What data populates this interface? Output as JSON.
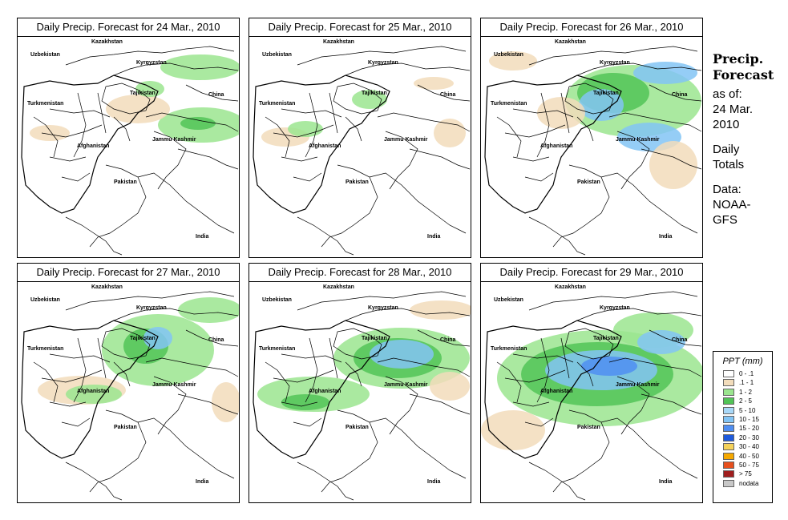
{
  "panels": [
    {
      "title": "Daily Precip. Forecast for  24 Mar., 2010",
      "rain": [
        {
          "cx": 228,
          "cy": 38,
          "rx": 50,
          "ry": 16,
          "c": "#9be58f"
        },
        {
          "cx": 230,
          "cy": 110,
          "rx": 55,
          "ry": 22,
          "c": "#9be58f"
        },
        {
          "cx": 225,
          "cy": 108,
          "rx": 22,
          "ry": 8,
          "c": "#52c457"
        },
        {
          "cx": 150,
          "cy": 90,
          "rx": 40,
          "ry": 18,
          "c": "#f2dcbb"
        },
        {
          "cx": 165,
          "cy": 65,
          "rx": 18,
          "ry": 10,
          "c": "#9be58f"
        },
        {
          "cx": 40,
          "cy": 120,
          "rx": 25,
          "ry": 10,
          "c": "#f2dcbb"
        }
      ]
    },
    {
      "title": "Daily Precip. Forecast for  25 Mar., 2010",
      "rain": [
        {
          "cx": 45,
          "cy": 125,
          "rx": 30,
          "ry": 12,
          "c": "#f2dcbb"
        },
        {
          "cx": 70,
          "cy": 115,
          "rx": 22,
          "ry": 10,
          "c": "#9be58f"
        },
        {
          "cx": 150,
          "cy": 78,
          "rx": 22,
          "ry": 12,
          "c": "#9be58f"
        },
        {
          "cx": 230,
          "cy": 58,
          "rx": 25,
          "ry": 8,
          "c": "#f2dcbb"
        },
        {
          "cx": 250,
          "cy": 120,
          "rx": 20,
          "ry": 18,
          "c": "#f2dcbb"
        }
      ]
    },
    {
      "title": "Daily Precip. Forecast for  26 Mar., 2010",
      "rain": [
        {
          "cx": 190,
          "cy": 80,
          "rx": 85,
          "ry": 45,
          "c": "#9be58f"
        },
        {
          "cx": 165,
          "cy": 70,
          "rx": 45,
          "ry": 25,
          "c": "#52c457"
        },
        {
          "cx": 210,
          "cy": 125,
          "rx": 40,
          "ry": 18,
          "c": "#82c4f5"
        },
        {
          "cx": 150,
          "cy": 85,
          "rx": 28,
          "ry": 20,
          "c": "#82c4f5"
        },
        {
          "cx": 230,
          "cy": 45,
          "rx": 40,
          "ry": 14,
          "c": "#82c4f5"
        },
        {
          "cx": 240,
          "cy": 160,
          "rx": 30,
          "ry": 30,
          "c": "#f2dcbb"
        },
        {
          "cx": 100,
          "cy": 95,
          "rx": 30,
          "ry": 20,
          "c": "#f2dcbb"
        },
        {
          "cx": 40,
          "cy": 30,
          "rx": 30,
          "ry": 12,
          "c": "#f2dcbb"
        }
      ]
    },
    {
      "title": "Daily Precip. Forecast for  27 Mar., 2010",
      "rain": [
        {
          "cx": 175,
          "cy": 85,
          "rx": 70,
          "ry": 45,
          "c": "#9be58f"
        },
        {
          "cx": 160,
          "cy": 80,
          "rx": 28,
          "ry": 22,
          "c": "#52c457"
        },
        {
          "cx": 175,
          "cy": 70,
          "rx": 18,
          "ry": 14,
          "c": "#82c4f5"
        },
        {
          "cx": 240,
          "cy": 35,
          "rx": 40,
          "ry": 16,
          "c": "#9be58f"
        },
        {
          "cx": 80,
          "cy": 135,
          "rx": 55,
          "ry": 18,
          "c": "#f2dcbb"
        },
        {
          "cx": 95,
          "cy": 140,
          "rx": 35,
          "ry": 12,
          "c": "#9be58f"
        },
        {
          "cx": 260,
          "cy": 150,
          "rx": 18,
          "ry": 25,
          "c": "#f2dcbb"
        }
      ]
    },
    {
      "title": "Daily Precip. Forecast for  28 Mar., 2010",
      "rain": [
        {
          "cx": 190,
          "cy": 95,
          "rx": 85,
          "ry": 38,
          "c": "#9be58f"
        },
        {
          "cx": 185,
          "cy": 95,
          "rx": 55,
          "ry": 25,
          "c": "#52c457"
        },
        {
          "cx": 190,
          "cy": 90,
          "rx": 40,
          "ry": 18,
          "c": "#82c4f5"
        },
        {
          "cx": 80,
          "cy": 140,
          "rx": 70,
          "ry": 22,
          "c": "#9be58f"
        },
        {
          "cx": 70,
          "cy": 150,
          "rx": 30,
          "ry": 10,
          "c": "#52c457"
        },
        {
          "cx": 240,
          "cy": 35,
          "rx": 40,
          "ry": 12,
          "c": "#f2dcbb"
        },
        {
          "cx": 250,
          "cy": 130,
          "rx": 25,
          "ry": 18,
          "c": "#f2dcbb"
        }
      ]
    },
    {
      "title": "Daily Precip. Forecast for  29 Mar., 2010",
      "rain": [
        {
          "cx": 150,
          "cy": 120,
          "rx": 130,
          "ry": 60,
          "c": "#9be58f"
        },
        {
          "cx": 145,
          "cy": 115,
          "rx": 95,
          "ry": 40,
          "c": "#52c457"
        },
        {
          "cx": 150,
          "cy": 110,
          "rx": 70,
          "ry": 25,
          "c": "#82c4f5"
        },
        {
          "cx": 160,
          "cy": 105,
          "rx": 35,
          "ry": 12,
          "c": "#4f8ef2"
        },
        {
          "cx": 215,
          "cy": 60,
          "rx": 50,
          "ry": 22,
          "c": "#9be58f"
        },
        {
          "cx": 225,
          "cy": 75,
          "rx": 30,
          "ry": 15,
          "c": "#82c4f5"
        },
        {
          "cx": 40,
          "cy": 185,
          "rx": 40,
          "ry": 25,
          "c": "#f2dcbb"
        }
      ]
    }
  ],
  "map_labels": [
    "Kazakhstan",
    "Uzbekistan",
    "Kyrgyzstan",
    "Tajikistan",
    "China",
    "Turkmenistan",
    "Afghanistan",
    "Jammu Kashmir",
    "Pakistan",
    "India"
  ],
  "side": {
    "title_line1": "Precip.",
    "title_line2": "Forecast",
    "as_of": "as of:",
    "date_line1": "24 Mar.",
    "date_line2": "2010",
    "daily": "Daily",
    "totals": "Totals",
    "data": "Data:",
    "source_line1": "NOAA-",
    "source_line2": "GFS"
  },
  "legend": {
    "title": "PPT (mm)",
    "items": [
      {
        "label": "0 - .1",
        "color": "#ffffff"
      },
      {
        "label": ".1 - 1",
        "color": "#f2dcbb"
      },
      {
        "label": "1 - 2",
        "color": "#9be58f"
      },
      {
        "label": "2 - 5",
        "color": "#52c457"
      },
      {
        "label": "5 - 10",
        "color": "#a8d8f8"
      },
      {
        "label": "10 - 15",
        "color": "#82c4f5"
      },
      {
        "label": "15 - 20",
        "color": "#4f8ef2"
      },
      {
        "label": "20 - 30",
        "color": "#1e5adc"
      },
      {
        "label": "30 - 40",
        "color": "#f5d25a"
      },
      {
        "label": "40 - 50",
        "color": "#f5a800"
      },
      {
        "label": "50 - 75",
        "color": "#e6501e"
      },
      {
        "label": "> 75",
        "color": "#a01e1e"
      },
      {
        "label": "nodata",
        "color": "#c8c8c8"
      }
    ]
  }
}
